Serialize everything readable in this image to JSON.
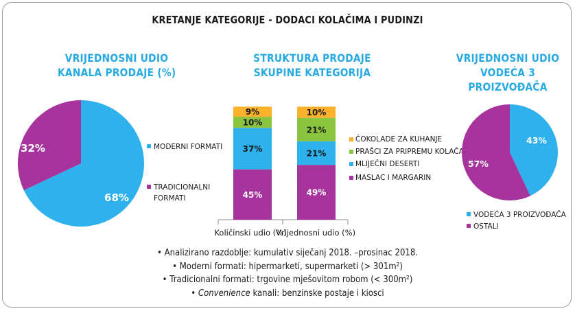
{
  "title": "KRETANJE KATEGORIJE - DODACI KOLAČIMA I PUDINZI",
  "panel_left": {
    "title_line1": "VRIJEDNOSNI UDIO",
    "title_line2": "KANALA PRODAJE (%)"
  },
  "panel_middle": {
    "title_line1": "STRUKTURA PRODAJE",
    "title_line2": "SKUPINE KATEGORIJA"
  },
  "panel_right": {
    "title_line1": "VRIJEDNOSNI UDIO",
    "title_line2": "VODEĆA 3",
    "title_line3": "PROIZVOĐAČA"
  },
  "colors": {
    "magenta": "#a7339d",
    "blue": "#2eb1ec",
    "green": "#8bc53f",
    "orange": "#fbb12b"
  },
  "chart_data": [
    {
      "type": "pie",
      "labels": [
        "MODERNI FORMATI",
        "TRADICIONALNI FORMATI"
      ],
      "values": [
        68,
        32
      ],
      "value_labels": [
        "68%",
        "32%"
      ],
      "legend": [
        "MODERNI FORMATI",
        "TRADICIONALNI",
        "FORMATI"
      ]
    },
    {
      "type": "bar",
      "stacked": true,
      "categories": [
        "Količinski udio (%)",
        "Vrijednosni udio (%)"
      ],
      "series": [
        {
          "name": "MASLAC I MARGARIN",
          "values": [
            45,
            49
          ],
          "labels": [
            "45%",
            "49%"
          ]
        },
        {
          "name": "MLIJEČNI DESERTI",
          "values": [
            37,
            21
          ],
          "labels": [
            "37%",
            "21%"
          ]
        },
        {
          "name": "PRAŠCI ZA PRIPREMU KOLAČA",
          "values": [
            10,
            21
          ],
          "labels": [
            "10%",
            "21%"
          ]
        },
        {
          "name": "ČOKOLADE ZA KUHANJE",
          "values": [
            9,
            10
          ],
          "labels": [
            "9%",
            "10%"
          ]
        }
      ],
      "legend_order": [
        "ČOKOLADE ZA KUHANJE",
        "PRAŠCI ZA PRIPREMU KOLAČA",
        "MLIJEČNI DESERTI",
        "MASLAC I MARGARIN"
      ]
    },
    {
      "type": "pie",
      "labels": [
        "VODEĆA 3 PROIZVOĐAČA",
        "OSTALI"
      ],
      "values": [
        43,
        57
      ],
      "value_labels": [
        "43%",
        "57%"
      ],
      "legend": [
        "VODEĆA 3 PROIZVOĐAČA",
        "OSTALI"
      ]
    }
  ],
  "notes": {
    "line1": "Analizirano razdoblje: kumulativ siječanj 2018. –prosinac 2018.",
    "line2": "Moderni formati: hipermarketi, supermarketi (> 301m²)",
    "line3": "Tradicionalni formati: trgovine mješovitom robom (< 300m²)",
    "line4_italic": "Convenience",
    "line4_rest": " kanali: benzinske postaje i kiosci"
  }
}
